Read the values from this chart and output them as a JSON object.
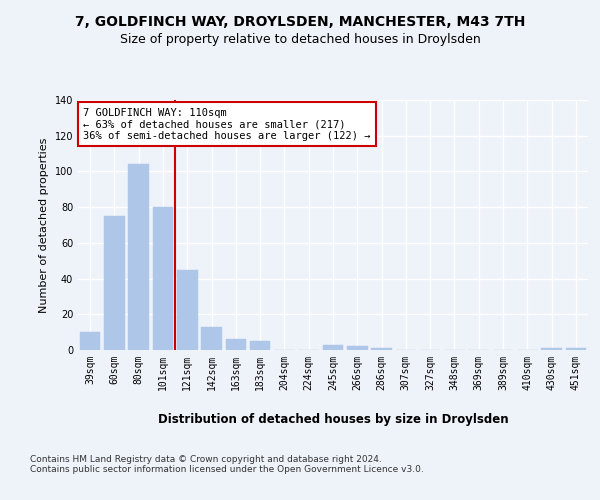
{
  "title": "7, GOLDFINCH WAY, DROYLSDEN, MANCHESTER, M43 7TH",
  "subtitle": "Size of property relative to detached houses in Droylsden",
  "xlabel": "Distribution of detached houses by size in Droylsden",
  "ylabel": "Number of detached properties",
  "categories": [
    "39sqm",
    "60sqm",
    "80sqm",
    "101sqm",
    "121sqm",
    "142sqm",
    "163sqm",
    "183sqm",
    "204sqm",
    "224sqm",
    "245sqm",
    "266sqm",
    "286sqm",
    "307sqm",
    "327sqm",
    "348sqm",
    "369sqm",
    "389sqm",
    "410sqm",
    "430sqm",
    "451sqm"
  ],
  "values": [
    10,
    75,
    104,
    80,
    45,
    13,
    6,
    5,
    0,
    0,
    3,
    2,
    1,
    0,
    0,
    0,
    0,
    0,
    0,
    1,
    1
  ],
  "bar_color": "#aec6e8",
  "bar_edge_color": "#aec6e8",
  "vline_color": "#cc0000",
  "annotation_text": "7 GOLDFINCH WAY: 110sqm\n← 63% of detached houses are smaller (217)\n36% of semi-detached houses are larger (122) →",
  "annotation_box_color": "#ffffff",
  "annotation_box_edge": "#cc0000",
  "ylim": [
    0,
    140
  ],
  "yticks": [
    0,
    20,
    40,
    60,
    80,
    100,
    120,
    140
  ],
  "footer": "Contains HM Land Registry data © Crown copyright and database right 2024.\nContains public sector information licensed under the Open Government Licence v3.0.",
  "background_color": "#eef2f9",
  "plot_bg_color": "#eef2f9",
  "grid_color": "#ffffff",
  "title_fontsize": 10,
  "subtitle_fontsize": 9,
  "xlabel_fontsize": 8.5,
  "ylabel_fontsize": 8,
  "tick_fontsize": 7,
  "annotation_fontsize": 7.5,
  "footer_fontsize": 6.5
}
